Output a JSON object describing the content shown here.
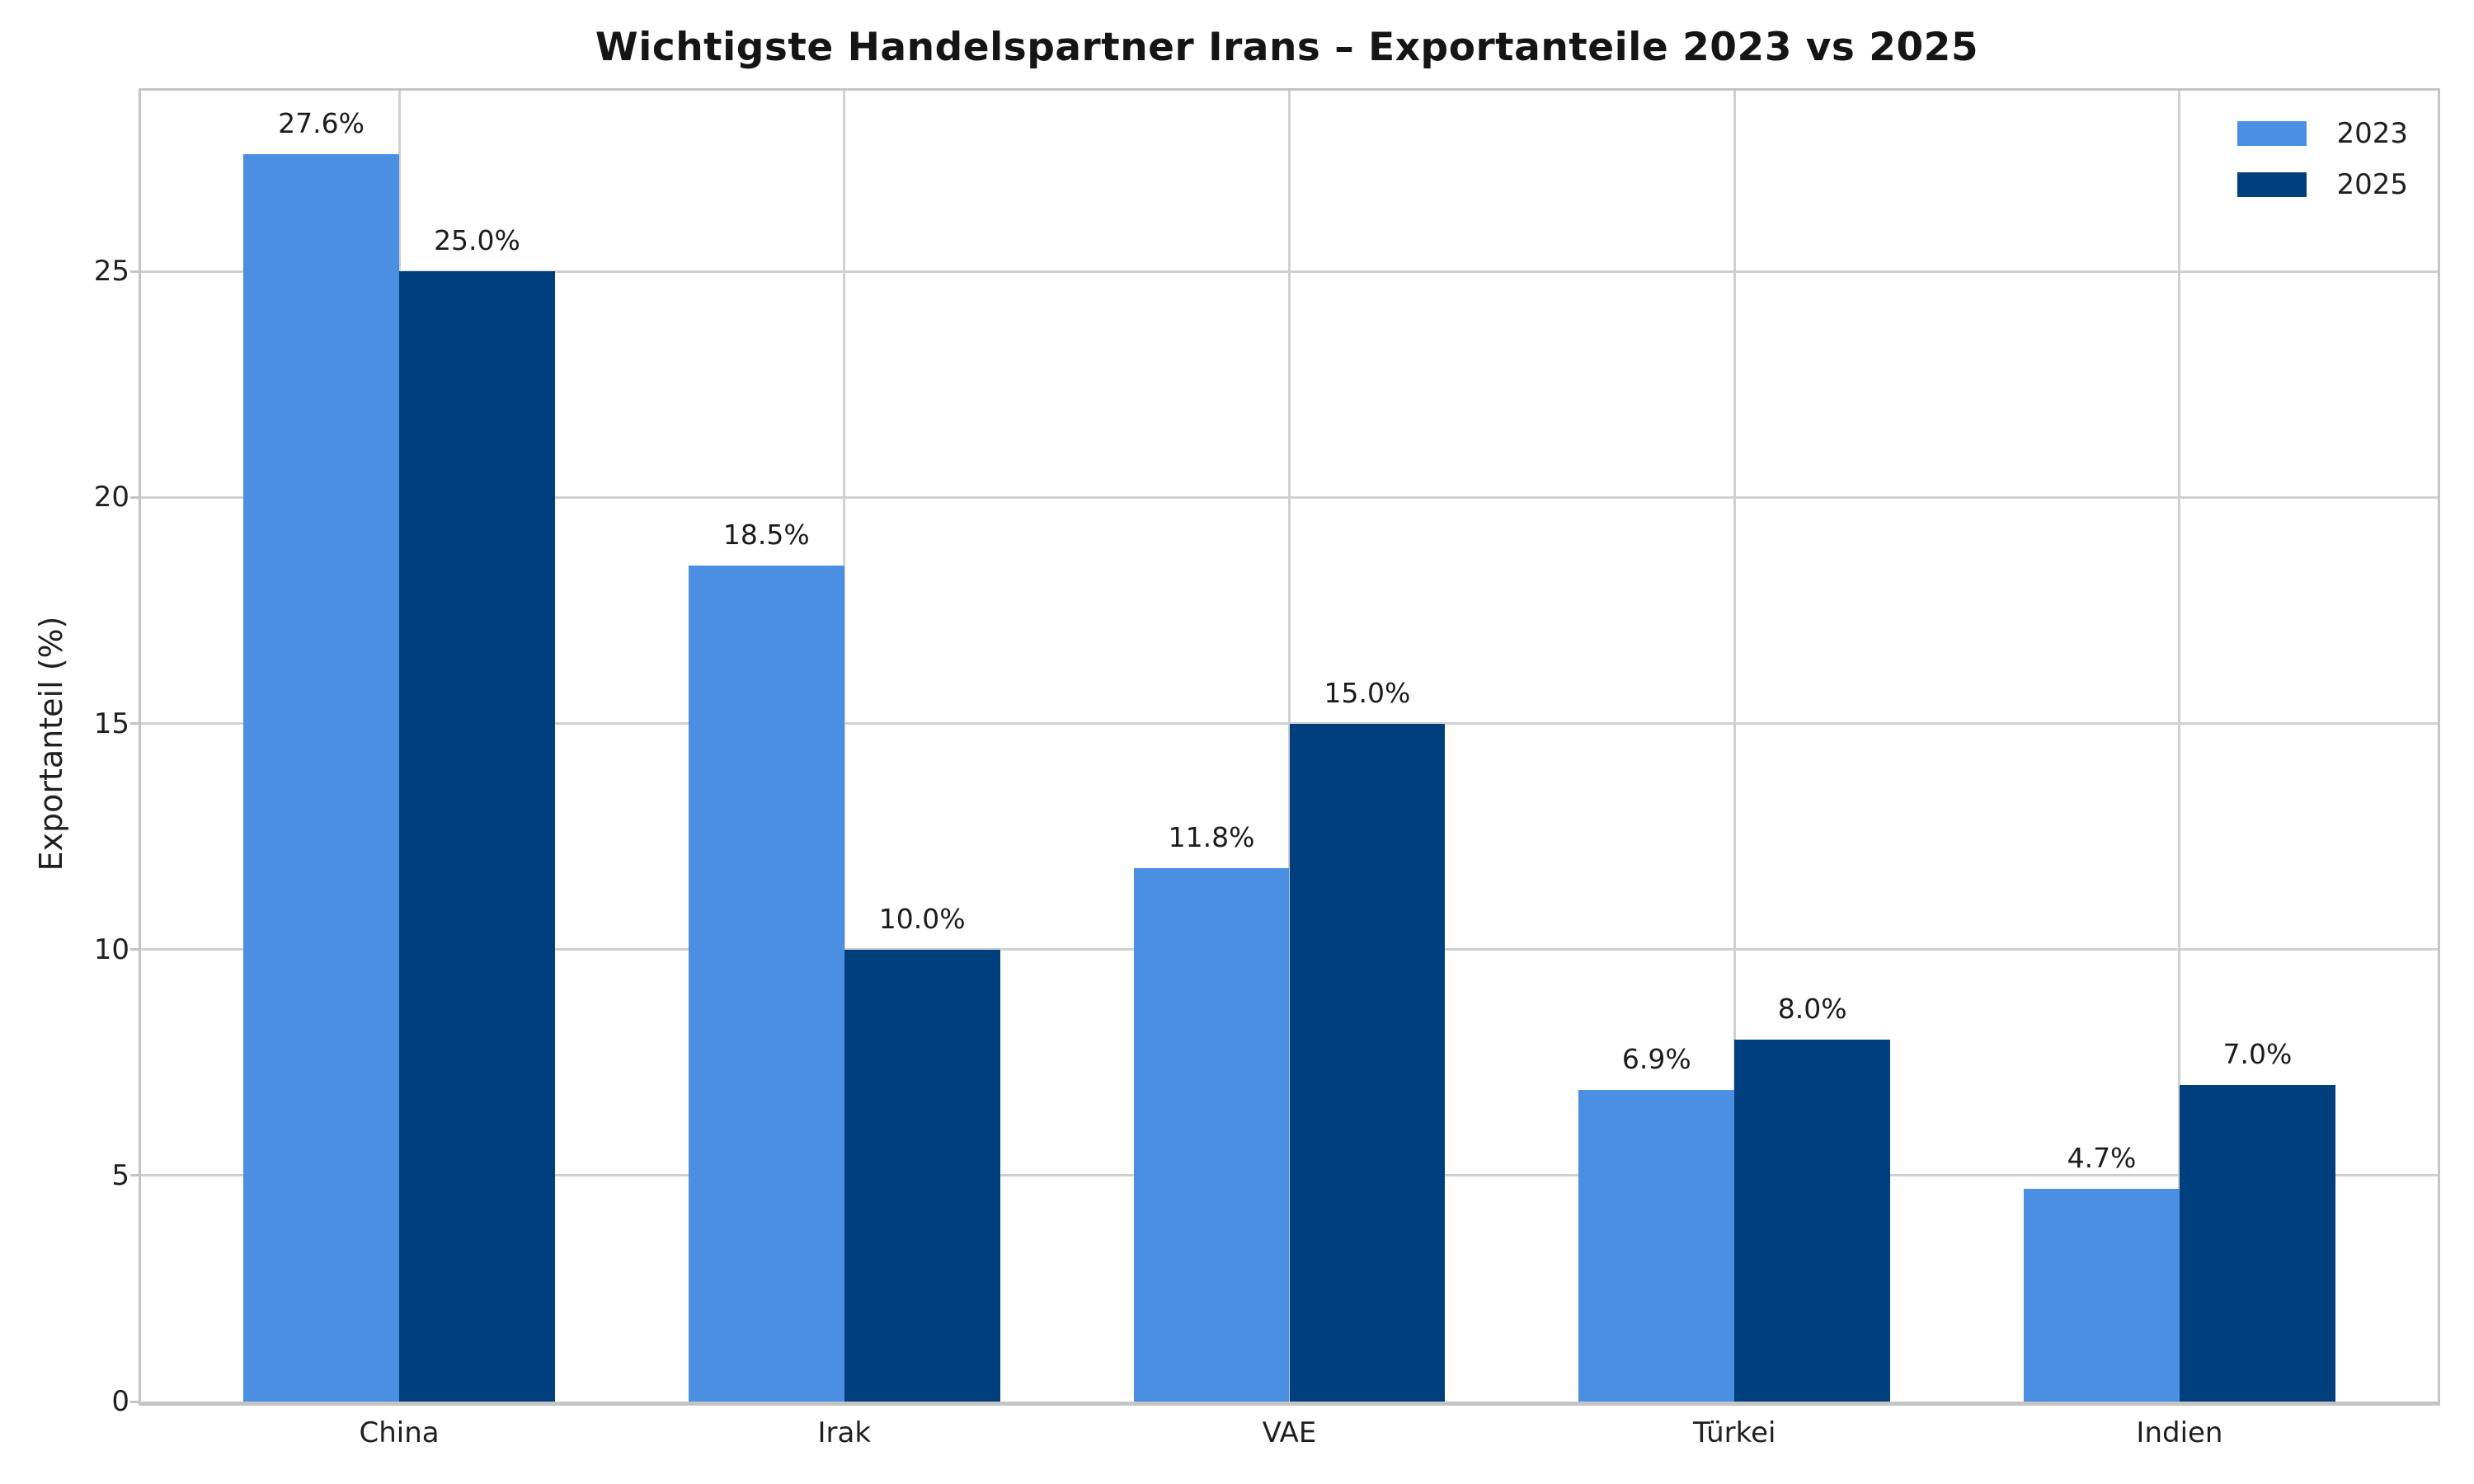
{
  "chart_data": {
    "type": "bar",
    "title": "Wichtigste Handelspartner Irans – Exportanteile 2023 vs 2025",
    "ylabel": "Exportanteil (%)",
    "categories": [
      "China",
      "Irak",
      "VAE",
      "Türkei",
      "Indien"
    ],
    "series": [
      {
        "name": "2023",
        "color": "#4A8FE2",
        "values": [
          27.6,
          18.5,
          11.8,
          6.9,
          4.7
        ],
        "value_labels": [
          "27.6%",
          "18.5%",
          "11.8%",
          "6.9%",
          "4.7%"
        ]
      },
      {
        "name": "2025",
        "color": "#003F7E",
        "values": [
          25.0,
          10.0,
          15.0,
          8.0,
          7.0
        ],
        "value_labels": [
          "25.0%",
          "10.0%",
          "15.0%",
          "8.0%",
          "7.0%"
        ]
      }
    ],
    "yticks": [
      0,
      5,
      10,
      15,
      20,
      25
    ],
    "ylim": [
      0,
      29
    ],
    "grid": true,
    "legend_position": "upper right"
  },
  "colors": {
    "bar_2023": "#4A8FE2",
    "bar_2025": "#003F7E",
    "gridline": "#D0D0D0",
    "spine": "#C4C4C4",
    "text": "#1F1F1F",
    "background": "#FFFFFF"
  }
}
